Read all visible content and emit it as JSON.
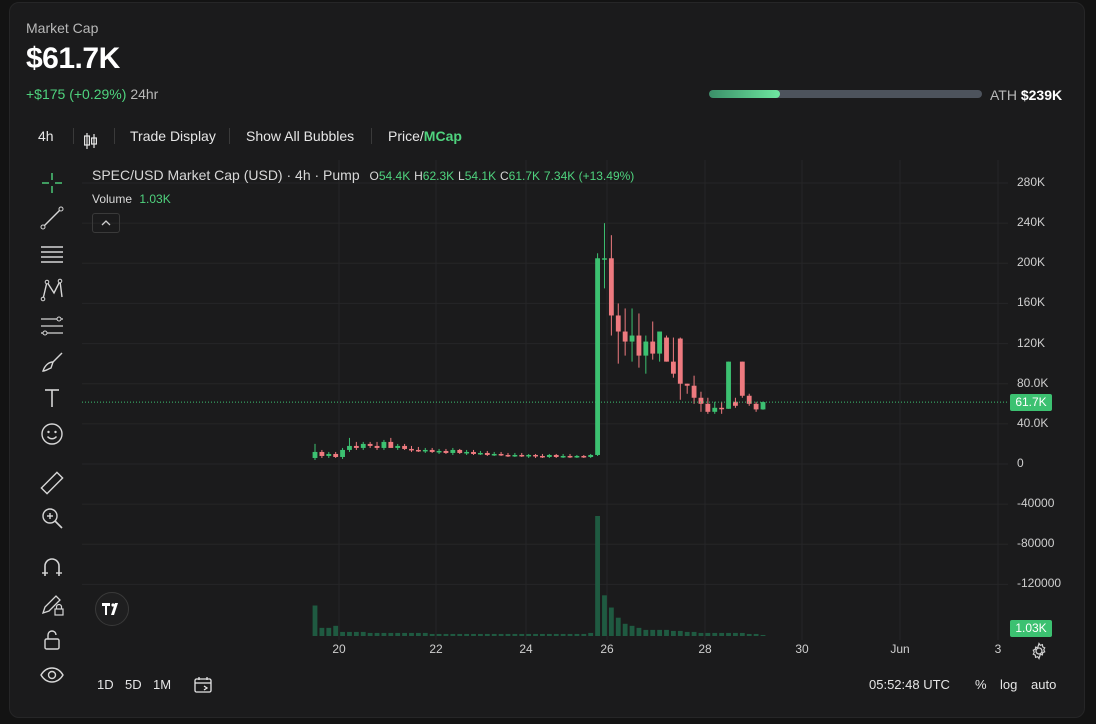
{
  "header": {
    "label": "Market Cap",
    "value": "$61.7K",
    "change_abs": "+$175",
    "change_pct": "(+0.29%)",
    "change_period": "24hr"
  },
  "ath": {
    "label": "ATH",
    "value": "$239K",
    "progress": 0.26
  },
  "toolbar": {
    "interval": "4h",
    "candles_icon": "candlestick-icon",
    "trade_display": "Trade Display",
    "show_bubbles": "Show All Bubbles",
    "price_label": "Price/",
    "mcap_label": "MCap"
  },
  "legend": {
    "symbol": "SPEC/USD Market Cap (USD) · 4h · Pump",
    "o_label": "O",
    "o": "54.4K",
    "h_label": "H",
    "h": "62.3K",
    "l_label": "L",
    "l": "54.1K",
    "c_label": "C",
    "c": "61.7K",
    "change": "7.34K (+13.49%)",
    "volume_label": "Volume",
    "volume": "1.03K"
  },
  "price_tag": "61.7K",
  "volume_tag": "1.03K",
  "y_axis": [
    "280K",
    "240K",
    "200K",
    "160K",
    "120K",
    "80.0K",
    "40.0K",
    "0",
    "-40000",
    "-80000",
    "-120000"
  ],
  "x_axis": [
    "20",
    "22",
    "24",
    "26",
    "28",
    "30",
    "Jun",
    "3"
  ],
  "bottom": {
    "ranges": [
      "1D",
      "5D",
      "1M"
    ],
    "time": "05:52:48 UTC",
    "percent": "%",
    "log": "log",
    "auto": "auto"
  },
  "tools": [
    "crosshair-icon",
    "trend-line-icon",
    "horizontal-lines-icon",
    "pattern-icon",
    "fib-icon",
    "brush-icon",
    "text-icon",
    "emoji-icon",
    "ruler-icon",
    "zoom-in-icon",
    "magnet-icon",
    "lock-drawing-icon",
    "lock-icon",
    "eye-icon"
  ],
  "colors": {
    "up": "#3cc171",
    "down": "#ee7a7f",
    "accent": "#4fd37e",
    "volume": "#1f5a41"
  },
  "chart_data": {
    "type": "candlestick",
    "title": "SPEC/USD Market Cap (USD) · 4h · Pump",
    "x_ticks": [
      "20",
      "22",
      "24",
      "26",
      "28",
      "30",
      "Jun",
      "3"
    ],
    "ylim": [
      -130000,
      290000
    ],
    "last_value": 61700,
    "candles": [
      {
        "o": 6000,
        "h": 20000,
        "l": 4000,
        "c": 12000
      },
      {
        "o": 12000,
        "h": 14000,
        "l": 6000,
        "c": 8000
      },
      {
        "o": 8000,
        "h": 12000,
        "l": 6000,
        "c": 10000
      },
      {
        "o": 10000,
        "h": 12000,
        "l": 6000,
        "c": 7000
      },
      {
        "o": 7000,
        "h": 16000,
        "l": 5000,
        "c": 14000
      },
      {
        "o": 14000,
        "h": 26000,
        "l": 12000,
        "c": 18000
      },
      {
        "o": 18000,
        "h": 22000,
        "l": 14000,
        "c": 16000
      },
      {
        "o": 16000,
        "h": 22000,
        "l": 14000,
        "c": 20000
      },
      {
        "o": 20000,
        "h": 22000,
        "l": 16000,
        "c": 18000
      },
      {
        "o": 18000,
        "h": 22000,
        "l": 14000,
        "c": 16000
      },
      {
        "o": 16000,
        "h": 24000,
        "l": 14000,
        "c": 22000
      },
      {
        "o": 22000,
        "h": 26000,
        "l": 18000,
        "c": 16000
      },
      {
        "o": 16000,
        "h": 20000,
        "l": 14000,
        "c": 18000
      },
      {
        "o": 18000,
        "h": 20000,
        "l": 14000,
        "c": 15000
      },
      {
        "o": 15000,
        "h": 18000,
        "l": 12000,
        "c": 14000
      },
      {
        "o": 14000,
        "h": 17000,
        "l": 12000,
        "c": 13000
      },
      {
        "o": 13000,
        "h": 16000,
        "l": 11000,
        "c": 14000
      },
      {
        "o": 14000,
        "h": 16000,
        "l": 11000,
        "c": 12000
      },
      {
        "o": 12000,
        "h": 15000,
        "l": 10000,
        "c": 13000
      },
      {
        "o": 13000,
        "h": 15000,
        "l": 10000,
        "c": 11000
      },
      {
        "o": 11000,
        "h": 16000,
        "l": 9000,
        "c": 14000
      },
      {
        "o": 14000,
        "h": 15000,
        "l": 10000,
        "c": 11000
      },
      {
        "o": 11000,
        "h": 14000,
        "l": 9000,
        "c": 12000
      },
      {
        "o": 12000,
        "h": 14000,
        "l": 9000,
        "c": 10000
      },
      {
        "o": 10000,
        "h": 13000,
        "l": 9000,
        "c": 11000
      },
      {
        "o": 11000,
        "h": 13000,
        "l": 8000,
        "c": 9000
      },
      {
        "o": 9000,
        "h": 12000,
        "l": 8000,
        "c": 10000
      },
      {
        "o": 10000,
        "h": 12000,
        "l": 8000,
        "c": 9000
      },
      {
        "o": 9000,
        "h": 11000,
        "l": 7000,
        "c": 8000
      },
      {
        "o": 8000,
        "h": 11000,
        "l": 7000,
        "c": 9000
      },
      {
        "o": 9000,
        "h": 11000,
        "l": 7000,
        "c": 8000
      },
      {
        "o": 8000,
        "h": 10000,
        "l": 6000,
        "c": 9000
      },
      {
        "o": 9000,
        "h": 10000,
        "l": 6000,
        "c": 8000
      },
      {
        "o": 8000,
        "h": 10000,
        "l": 6000,
        "c": 7000
      },
      {
        "o": 7000,
        "h": 10000,
        "l": 6000,
        "c": 9000
      },
      {
        "o": 9000,
        "h": 10000,
        "l": 6000,
        "c": 7000
      },
      {
        "o": 7000,
        "h": 10000,
        "l": 6000,
        "c": 8000
      },
      {
        "o": 8000,
        "h": 10000,
        "l": 6000,
        "c": 7000
      },
      {
        "o": 7000,
        "h": 9000,
        "l": 6000,
        "c": 8000
      },
      {
        "o": 8000,
        "h": 9000,
        "l": 6000,
        "c": 7000
      },
      {
        "o": 7000,
        "h": 10000,
        "l": 6000,
        "c": 9000
      },
      {
        "o": 9000,
        "h": 210000,
        "l": 8000,
        "c": 205000
      },
      {
        "o": 205000,
        "h": 240000,
        "l": 175000,
        "c": 205000
      },
      {
        "o": 205000,
        "h": 228000,
        "l": 128000,
        "c": 148000
      },
      {
        "o": 148000,
        "h": 160000,
        "l": 100000,
        "c": 132000
      },
      {
        "o": 132000,
        "h": 155000,
        "l": 108000,
        "c": 122000
      },
      {
        "o": 122000,
        "h": 155000,
        "l": 102000,
        "c": 128000
      },
      {
        "o": 128000,
        "h": 150000,
        "l": 96000,
        "c": 108000
      },
      {
        "o": 108000,
        "h": 128000,
        "l": 90000,
        "c": 122000
      },
      {
        "o": 122000,
        "h": 142000,
        "l": 104000,
        "c": 110000
      },
      {
        "o": 110000,
        "h": 132000,
        "l": 102000,
        "c": 132000
      },
      {
        "o": 126000,
        "h": 128000,
        "l": 102000,
        "c": 102000
      },
      {
        "o": 102000,
        "h": 126000,
        "l": 86000,
        "c": 90000
      },
      {
        "o": 125000,
        "h": 126000,
        "l": 64000,
        "c": 80000
      },
      {
        "o": 80000,
        "h": 80000,
        "l": 70000,
        "c": 78000
      },
      {
        "o": 78000,
        "h": 88000,
        "l": 60000,
        "c": 66000
      },
      {
        "o": 66000,
        "h": 72000,
        "l": 52000,
        "c": 60000
      },
      {
        "o": 60000,
        "h": 66000,
        "l": 50000,
        "c": 52000
      },
      {
        "o": 52000,
        "h": 62000,
        "l": 50000,
        "c": 56000
      },
      {
        "o": 56000,
        "h": 62000,
        "l": 50000,
        "c": 55000
      },
      {
        "o": 55000,
        "h": 102000,
        "l": 55000,
        "c": 102000
      },
      {
        "o": 62000,
        "h": 66000,
        "l": 56000,
        "c": 58000
      },
      {
        "o": 102000,
        "h": 102000,
        "l": 66000,
        "c": 68000
      },
      {
        "o": 68000,
        "h": 70000,
        "l": 58000,
        "c": 60000
      },
      {
        "o": 60000,
        "h": 62000,
        "l": 52000,
        "c": 54400
      },
      {
        "o": 54400,
        "h": 62300,
        "l": 54100,
        "c": 61700
      }
    ],
    "volume": [
      30,
      8,
      8,
      10,
      4,
      4,
      4,
      4,
      3,
      3,
      3,
      3,
      3,
      3,
      3,
      3,
      3,
      2,
      2,
      2,
      2,
      2,
      2,
      2,
      2,
      2,
      2,
      2,
      2,
      2,
      2,
      2,
      2,
      2,
      2,
      2,
      2,
      2,
      2,
      2,
      3,
      118,
      40,
      28,
      18,
      12,
      10,
      8,
      6,
      6,
      6,
      6,
      5,
      5,
      4,
      4,
      3,
      3,
      3,
      3,
      3,
      3,
      3,
      2,
      2,
      1
    ]
  }
}
